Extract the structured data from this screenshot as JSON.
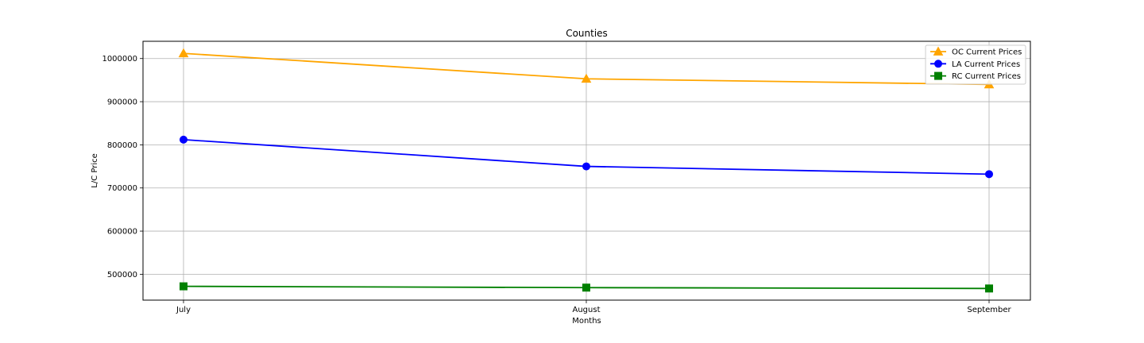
{
  "chart_data": {
    "type": "line",
    "title": "Counties",
    "xlabel": "Months",
    "ylabel": "L/C Price",
    "categories": [
      "July",
      "August",
      "September"
    ],
    "ylim": [
      440000,
      1040000
    ],
    "yticks": [
      500000,
      600000,
      700000,
      800000,
      900000,
      1000000
    ],
    "ytick_labels": [
      "500000",
      "600000",
      "700000",
      "800000",
      "900000",
      "1000000"
    ],
    "grid": true,
    "legend_position": "top-right",
    "series": [
      {
        "name": "OC Current Prices",
        "values": [
          1012000,
          953000,
          940000
        ],
        "color": "#FFA500",
        "marker": "triangle"
      },
      {
        "name": "LA Current Prices",
        "values": [
          812000,
          750000,
          732000
        ],
        "color": "#0000FF",
        "marker": "circle"
      },
      {
        "name": "RC Current Prices",
        "values": [
          472000,
          469000,
          467000
        ],
        "color": "#008000",
        "marker": "square"
      }
    ]
  }
}
